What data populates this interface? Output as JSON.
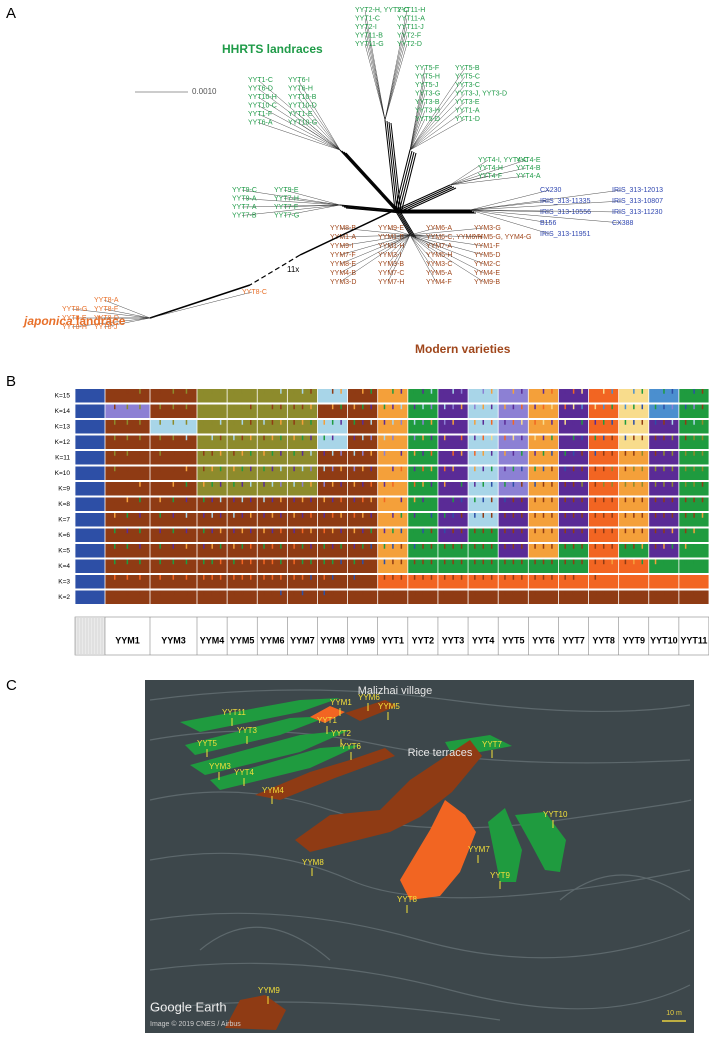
{
  "panel_labels": [
    "A",
    "B",
    "C"
  ],
  "panel_a": {
    "group_labels": {
      "hhrts": "HHRTS landraces",
      "japonica_italic": "japonica",
      "japonica_rest": "landrace",
      "modern": "Modern varieties"
    },
    "scale_bar": "0.0010",
    "break_label": "11x",
    "clusters": [
      {
        "color": "#1f9b48",
        "tips": [
          "YYT2-H, YYT2-C",
          "YYT11-H",
          "YYT1-C",
          "YYT11-A",
          "YYT2-I",
          "YYT11-J",
          "YYT11-B",
          "YYT2-F",
          "YYT11-G",
          "YYT2-D"
        ]
      },
      {
        "color": "#1f9b48",
        "tips": [
          "YYT5-F",
          "YYT5-B",
          "YYT5-H",
          "YYT5-C",
          "YYT5-J",
          "YYT3-C",
          "YYT3-G",
          "YYT3-J, YYT3-D",
          "YYT3-B",
          "YYT3-E",
          "YYT3-H",
          "YYT1-A",
          "YYT5-D",
          "YYT1-D"
        ]
      },
      {
        "color": "#1f9b48",
        "tips": [
          "YYT1-C",
          "YYT6-I",
          "YYT6-D",
          "YYT6-H",
          "YYT10-H",
          "YYT10-B",
          "YYT10-C",
          "YYT10-D",
          "YYT1-F",
          "YYT1-E",
          "YYT6-A",
          "YYT10-G"
        ]
      },
      {
        "color": "#1f9b48",
        "tips": [
          "YYT4-I, YYT4-C",
          "YYT4-E",
          "YYT4-H",
          "YYT4-B",
          "YYT4-F",
          "YYT4-A"
        ]
      },
      {
        "color": "#1f9b48",
        "tips": [
          "YYT9-C",
          "YYT9-E",
          "YYT9-A",
          "YYT7-H",
          "YYT7-A",
          "YYT7-F",
          "YYT7-B",
          "YYT7-G"
        ]
      },
      {
        "color": "#2f46b0",
        "tips": [
          "CX230",
          "IRIS_313-12013",
          "IRIS_313-11335",
          "IRIS_313-10807",
          "IRIS_313-10556",
          "IRIS_313-11230",
          "B156",
          "CX388",
          "IRIS_313-11951"
        ]
      },
      {
        "color": "#a0471c",
        "tips": [
          "YYM8-B",
          "YYM9-E",
          "YYM6-A",
          "YYM3-G",
          "YYM1-A",
          "YYM1-B",
          "YYM6-C, YYM6-H",
          "YYM5-G, YYM4-G",
          "YYM9-I",
          "YYM1-H",
          "YYM7-A",
          "YYM1-F",
          "YYM7-F",
          "YYM3-I",
          "YYM5-H",
          "YYM5-D",
          "YYM8-E",
          "YYM3-B",
          "YYM3-C",
          "YYM2-C",
          "YYM4-B",
          "YYM7-C",
          "YYM5-A",
          "YYM4-E",
          "YYM3-D",
          "YYM7-H",
          "YYM4-F",
          "YYM9-B"
        ]
      },
      {
        "color": "#e8702a",
        "tips": [
          "YYT8-C",
          "YYT8-A",
          "YYT8-G",
          "YYT8-F",
          "YYT8-E",
          "YYT8-D",
          "YYT8-H",
          "YYT8-J"
        ]
      }
    ]
  },
  "panel_b": {
    "k_labels": [
      "K=15",
      "K=14",
      "K=13",
      "K=12",
      "K=11",
      "K=10",
      "K=9",
      "K=8",
      "K=7",
      "K=6",
      "K=5",
      "K=4",
      "K=3",
      "K=2"
    ],
    "populations": [
      "YYM1",
      "YYM3",
      "YYM4",
      "YYM5",
      "YYM6",
      "YYM7",
      "YYM8",
      "YYM9",
      "YYT1",
      "YYT2",
      "YYT3",
      "YYT4",
      "YYT5",
      "YYT6",
      "YYT7",
      "YYT8",
      "YYT9",
      "YYT10",
      "YYT11"
    ]
  },
  "panel_c": {
    "place_labels": [
      "Malizhai village",
      "Rice terraces"
    ],
    "plot_labels": [
      "YYT11",
      "YYT3",
      "YYT5",
      "YYM3",
      "YYT4",
      "YYM4",
      "YYM1",
      "YYM6",
      "YYM5",
      "YYT1",
      "YYT2",
      "YYT6",
      "YYT7",
      "YYT10",
      "YYM7",
      "YYT9",
      "YYM8",
      "YYT8",
      "YYM9"
    ],
    "credits": [
      "Google Earth",
      "Image © 2019 CNES / Airbus"
    ],
    "scale_bar": "10 m"
  }
}
